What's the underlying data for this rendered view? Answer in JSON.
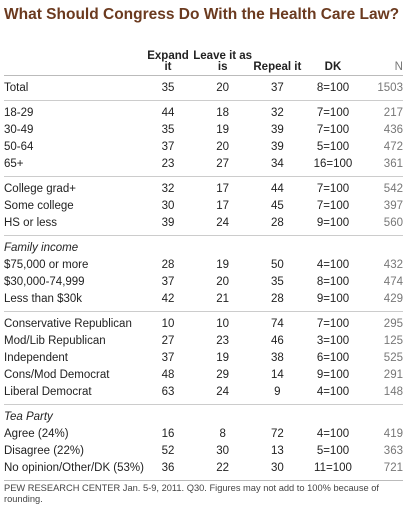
{
  "title": "What Should Congress Do With the Health Care Law?",
  "columns": [
    "Expand it",
    "Leave it as is",
    "Repeal it",
    "DK",
    "N"
  ],
  "groups": [
    {
      "rows": [
        {
          "label": "Total",
          "values": [
            35,
            20,
            37
          ],
          "dk": "8=100",
          "n": 1503
        }
      ]
    },
    {
      "rows": [
        {
          "label": "18-29",
          "values": [
            44,
            18,
            32
          ],
          "dk": "7=100",
          "n": 217
        },
        {
          "label": "30-49",
          "values": [
            35,
            19,
            39
          ],
          "dk": "7=100",
          "n": 436
        },
        {
          "label": "50-64",
          "values": [
            37,
            20,
            39
          ],
          "dk": "5=100",
          "n": 472
        },
        {
          "label": "65+",
          "values": [
            23,
            27,
            34
          ],
          "dk": "16=100",
          "n": 361
        }
      ]
    },
    {
      "rows": [
        {
          "label": "College grad+",
          "values": [
            32,
            17,
            44
          ],
          "dk": "7=100",
          "n": 542
        },
        {
          "label": "Some college",
          "values": [
            30,
            17,
            45
          ],
          "dk": "7=100",
          "n": 397
        },
        {
          "label": "HS or less",
          "values": [
            39,
            24,
            28
          ],
          "dk": "9=100",
          "n": 560
        }
      ]
    },
    {
      "heading": "Family income",
      "rows": [
        {
          "label": "$75,000 or more",
          "values": [
            28,
            19,
            50
          ],
          "dk": "4=100",
          "n": 432
        },
        {
          "label": "$30,000-74,999",
          "values": [
            37,
            20,
            35
          ],
          "dk": "8=100",
          "n": 474
        },
        {
          "label": "Less than $30k",
          "values": [
            42,
            21,
            28
          ],
          "dk": "9=100",
          "n": 429
        }
      ]
    },
    {
      "rows": [
        {
          "label": "Conservative Republican",
          "values": [
            10,
            10,
            74
          ],
          "dk": "7=100",
          "n": 295
        },
        {
          "label": "Mod/Lib Republican",
          "values": [
            27,
            23,
            46
          ],
          "dk": "3=100",
          "n": 125
        },
        {
          "label": "Independent",
          "values": [
            37,
            19,
            38
          ],
          "dk": "6=100",
          "n": 525
        },
        {
          "label": "Cons/Mod Democrat",
          "values": [
            48,
            29,
            14
          ],
          "dk": "9=100",
          "n": 291
        },
        {
          "label": "Liberal Democrat",
          "values": [
            63,
            24,
            9
          ],
          "dk": "4=100",
          "n": 148
        }
      ]
    },
    {
      "heading": "Tea Party",
      "rows": [
        {
          "label": "Agree (24%)",
          "values": [
            16,
            8,
            72
          ],
          "dk": "4=100",
          "n": 419
        },
        {
          "label": "Disagree (22%)",
          "values": [
            52,
            30,
            13
          ],
          "dk": "5=100",
          "n": 363
        },
        {
          "label": "No opinion/Other/DK (53%)",
          "values": [
            36,
            22,
            30
          ],
          "dk": "11=100",
          "n": 721
        }
      ]
    }
  ],
  "footer": "PEW RESEARCH CENTER Jan. 5-9, 2011. Q30. Figures may not add to 100% because of rounding."
}
